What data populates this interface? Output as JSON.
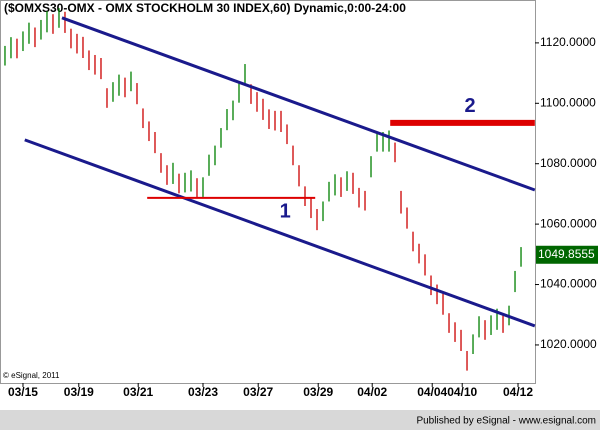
{
  "chart_data": {
    "type": "ohlc",
    "title": "($OMXS30-OMX - OMX STOCKHOLM 30 INDEX,60) Dynamic,0:00-24:00",
    "copyright": "© eSignal, 2011",
    "footer": "Published by eSignal - www.esignal.com",
    "high": [
      1119,
      1121.9,
      1121.4,
      1123.8,
      1126.7,
      1125.1,
      1127.6,
      1130.5,
      1129.5,
      1131.5,
      1130.3,
      1124.7,
      1123,
      1122,
      1117.5,
      1116,
      1115,
      1105,
      1107,
      1109.5,
      1108.5,
      1110.5,
      1106.7,
      1098.3,
      1094,
      1090.5,
      1083.5,
      1079.5,
      1080.3,
      1076.7,
      1077,
      1077.8,
      1075.2,
      1075.5,
      1083,
      1086,
      1091.8,
      1098.1,
      1100.9,
      1106.7,
      1113,
      1106.3,
      1103.7,
      1101.5,
      1098,
      1097.5,
      1097.5,
      1093,
      1086,
      1079.5,
      1072.5,
      1068.5,
      1065,
      1067.5,
      1074,
      1076.5,
      1075.5,
      1077.5,
      1077,
      1072,
      1071,
      1082.5,
      1090.5,
      1090.5,
      1091,
      1087,
      1071,
      1065.5,
      1057.5,
      1053.5,
      1050,
      1043,
      1040,
      1037,
      1030.5,
      1027.5,
      1025,
      1018,
      1023.5,
      1029.5,
      1028.2,
      1029.8,
      1032,
      1030.5,
      1033,
      1044.5,
      1052.4
    ],
    "low": [
      1112.5,
      1114.9,
      1114.9,
      1117.3,
      1119.7,
      1118.6,
      1121.1,
      1123.5,
      1123,
      1125,
      1123.3,
      1118.2,
      1116.5,
      1115,
      1111,
      1109.5,
      1108,
      1098.5,
      1100.5,
      1102.5,
      1102,
      1104,
      1099.7,
      1091.8,
      1087.5,
      1083.5,
      1077,
      1073,
      1073.3,
      1070.2,
      1070.5,
      1070.8,
      1068.7,
      1069,
      1076,
      1079.5,
      1085.3,
      1091.1,
      1094.4,
      1100.2,
      1106,
      1099.8,
      1097.2,
      1094.5,
      1091.5,
      1091,
      1090.5,
      1086.5,
      1079.5,
      1072.5,
      1066,
      1062,
      1058,
      1061,
      1067.5,
      1069.5,
      1069,
      1071,
      1070,
      1065.5,
      1064.5,
      1075.5,
      1084,
      1084,
      1084,
      1080.5,
      1063.5,
      1058.5,
      1051,
      1047,
      1043,
      1036.5,
      1033.5,
      1030,
      1024,
      1021,
      1018,
      1011.5,
      1017,
      1022.5,
      1021.7,
      1023.3,
      1025,
      1024,
      1026.5,
      1037.5,
      1045.9
    ],
    "up_color": "#008000",
    "down_color": "#cc0000",
    "last_price": {
      "value": 1049.8555,
      "label": "1049.8555"
    },
    "last_color": "#006600",
    "xlim": [
      -0.83,
      88.33
    ],
    "ylim": [
      1007.4,
      1134.2
    ],
    "xticks": [
      {
        "value": 3,
        "label": "03/15"
      },
      {
        "value": 12.3,
        "label": "03/19"
      },
      {
        "value": 22.2,
        "label": "03/21"
      },
      {
        "value": 33,
        "label": "03/23"
      },
      {
        "value": 42.2,
        "label": "03/27"
      },
      {
        "value": 52.2,
        "label": "03/29"
      },
      {
        "value": 61.2,
        "label": "04/02"
      },
      {
        "value": 71.2,
        "label": "04/04"
      },
      {
        "value": 76.2,
        "label": "04/10"
      },
      {
        "value": 85.5,
        "label": "04/12"
      }
    ],
    "yticks": [
      {
        "value": 1020,
        "label": "1020.0000"
      },
      {
        "value": 1040,
        "label": "1040.0000"
      },
      {
        "value": 1060,
        "label": "1060.0000"
      },
      {
        "value": 1080,
        "label": "1080.0000"
      },
      {
        "value": 1100,
        "label": "1100.0000"
      },
      {
        "value": 1120,
        "label": "1120.0000"
      }
    ],
    "trendlines": [
      {
        "x": [
          9.5,
          88.3
        ],
        "y": [
          1128.3,
          1071.3
        ],
        "color": "#1a1a8c",
        "width": 3
      },
      {
        "x": [
          3.3,
          88.3
        ],
        "y": [
          1087.9,
          1026.3
        ],
        "color": "#1a1a8c",
        "width": 3
      },
      {
        "x": [
          23.7,
          51.7
        ],
        "y": [
          1068.7,
          1068.7
        ],
        "color": "#dd0000",
        "width": 2
      },
      {
        "x": [
          64.2,
          88.3
        ],
        "y": [
          1093.5,
          1093.5
        ],
        "color": "#dd0000",
        "width": 6
      }
    ],
    "annotations": [
      {
        "text": "1",
        "x": 46.7,
        "y": 1064
      },
      {
        "text": "2",
        "x": 77.5,
        "y": 1098.8
      }
    ],
    "annotation_color": "#1a1a8c"
  }
}
